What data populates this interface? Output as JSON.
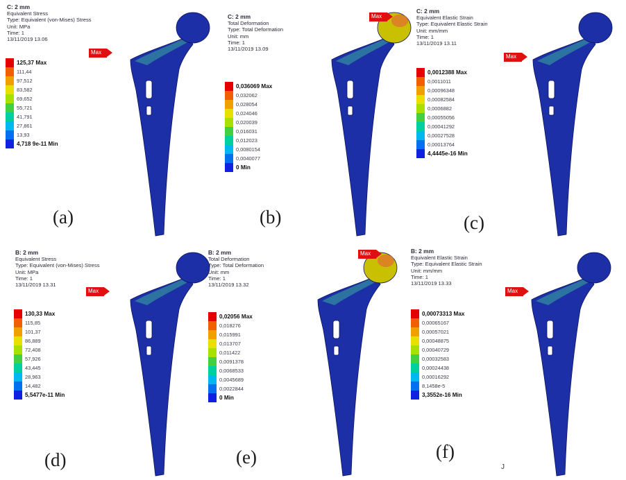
{
  "panels": [
    {
      "header": [
        "C: 2 mm",
        "Equivalent Stress",
        "Type: Equivalent (von-Mises) Stress",
        "Unit: MPa",
        "Time: 1",
        "13/11/2019 13.06"
      ],
      "legend": [
        "125,37 Max",
        "111,44",
        "97,512",
        "83,582",
        "69,652",
        "55,721",
        "41,791",
        "27,861",
        "13,93",
        "4,718 9e-11 Min"
      ],
      "caption": "(a)",
      "max_label": "Max",
      "head_color": "#1d2fa6"
    },
    {
      "header": [
        "C: 2 mm",
        "Total Deformation",
        "Type: Total Deformation",
        "Unit: mm",
        "Time: 1",
        "13/11/2019 13.09"
      ],
      "legend": [
        "0,036069 Max",
        "0,032062",
        "0,028054",
        "0,024046",
        "0,020039",
        "0,016031",
        "0,012023",
        "0,0080154",
        "0,0040077",
        "0 Min"
      ],
      "caption": "(b)",
      "max_label": "Max",
      "head_color": "#c8c000"
    },
    {
      "header": [
        "C: 2 mm",
        "Equivalent Elastic Strain",
        "Type: Equivalent Elastic Strain",
        "Unit: mm/mm",
        "Time: 1",
        "13/11/2019 13.11"
      ],
      "legend": [
        "0,0012388 Max",
        "0,0011011",
        "0,00096348",
        "0,00082584",
        "0,0006882",
        "0,00055056",
        "0,00041292",
        "0,00027528",
        "0,00013764",
        "4,4445e-16 Min"
      ],
      "caption": "(c)",
      "max_label": "Max",
      "head_color": "#1d2fa6"
    },
    {
      "header": [
        "B: 2 mm",
        "Equivalent Stress",
        "Type: Equivalent (von-Mises) Stress",
        "Unit: MPa",
        "Time: 1",
        "13/11/2019 13.31"
      ],
      "legend": [
        "130,33 Max",
        "115,85",
        "101,37",
        "86,889",
        "72,408",
        "57,926",
        "43,445",
        "28,963",
        "14,482",
        "5,5477e-11 Min"
      ],
      "caption": "(d)",
      "max_label": "Max",
      "head_color": "#1d2fa6"
    },
    {
      "header": [
        "B: 2 mm",
        "Total Deformation",
        "Type: Total Deformation",
        "Unit: mm",
        "Time: 1",
        "13/11/2019 13.32"
      ],
      "legend": [
        "0,02056 Max",
        "0,018276",
        "0,015991",
        "0,013707",
        "0,011422",
        "0,0091378",
        "0,0068533",
        "0,0045689",
        "0,0022844",
        "0 Min"
      ],
      "caption": "(e)",
      "max_label": "Max",
      "head_color": "#c8c000"
    },
    {
      "header": [
        "B: 2 mm",
        "Equivalent Elastic Strain",
        "Type: Equivalent Elastic Strain",
        "Unit: mm/mm",
        "Time: 1",
        "13/11/2019 13.33"
      ],
      "legend": [
        "0,00073313 Max",
        "0,00065167",
        "0,00057021",
        "0,00048875",
        "0,00040729",
        "0,00032583",
        "0,00024438",
        "0,00016292",
        "8,1458e-5",
        "3,3552e-16 Min"
      ],
      "caption": "(f)",
      "max_label": "Max",
      "head_color": "#1d2fa6"
    }
  ],
  "legend_colors": [
    "#e50000",
    "#f06000",
    "#f0a000",
    "#e8e000",
    "#a8e000",
    "#40d040",
    "#00d0a0",
    "#00b8f0",
    "#0070f0",
    "#1020e0"
  ],
  "stem_color": "#1d2fa6",
  "neck_color": "#2f7fa0",
  "stray_mark": "J"
}
